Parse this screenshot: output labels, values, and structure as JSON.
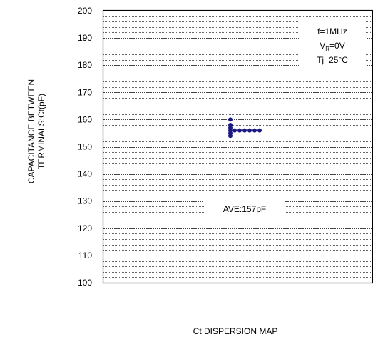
{
  "chart_data": {
    "type": "scatter",
    "title": "",
    "caption": "Ct DISPERSION MAP",
    "xlabel": "",
    "ylabel_lines": [
      "CAPACITANCE BETWEEN",
      "TERMINALS:Ct(pF)"
    ],
    "ylim": [
      100,
      200
    ],
    "yticks": [
      100,
      110,
      120,
      130,
      140,
      150,
      160,
      170,
      180,
      190,
      200
    ],
    "minor_grid_step": 2,
    "grid": true,
    "grid_style": "dotted",
    "conditions": {
      "freq": "f=1MHz",
      "vr_main": "V",
      "vr_sub": "R",
      "vr_value": "=0V",
      "tj": "Tj=25°C"
    },
    "average_label": "AVE:157pF",
    "point_color": "#1a1a80",
    "series": [
      {
        "values": [
          154,
          155,
          156,
          157,
          158,
          160,
          156,
          156,
          156,
          156,
          156,
          156
        ]
      }
    ]
  }
}
